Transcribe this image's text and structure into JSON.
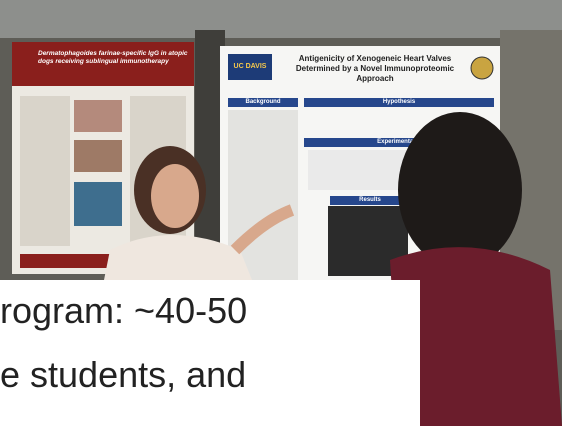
{
  "posters": [
    {
      "title": "Dermatophagoides farinae-specific IgG in atopic dogs receiving sublingual immunotherapy"
    },
    {
      "title": "Antigenicity of Xenogeneic Heart Valves Determined by a Novel Immunoproteomic Approach",
      "logo": "UC DAVIS",
      "sections": [
        "Background",
        "Hypothesis",
        "Experimental D",
        "Results"
      ]
    }
  ],
  "caption": {
    "lines": [
      "rogram: ~40-50",
      "e students, and"
    ]
  }
}
